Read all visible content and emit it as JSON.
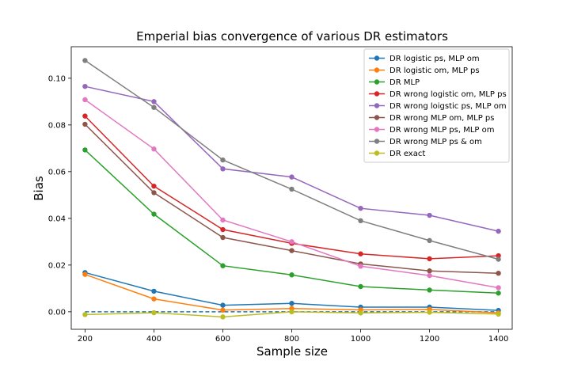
{
  "chart_data": {
    "type": "line",
    "title": "Emperial bias convergence of various DR estimators",
    "xlabel": "Sample size",
    "ylabel": "Bias",
    "x": [
      200,
      400,
      600,
      800,
      1000,
      1200,
      1400
    ],
    "xticks": [
      "200",
      "400",
      "600",
      "800",
      "1000",
      "1200",
      "1400"
    ],
    "yticks": [
      "0.00",
      "0.02",
      "0.04",
      "0.06",
      "0.08",
      "0.10"
    ],
    "xlim": [
      160,
      1440
    ],
    "ylim": [
      -0.0075,
      0.1135
    ],
    "legend_position": "top-right",
    "reference_line": {
      "y": 0,
      "style": "dashed",
      "color": "#1f77b4"
    },
    "series": [
      {
        "name": "DR logistic ps, MLP om",
        "color": "#1f77b4",
        "values": [
          0.0168,
          0.0088,
          0.0028,
          0.0036,
          0.002,
          0.002,
          0.0006
        ]
      },
      {
        "name": "DR logistic om, MLP ps",
        "color": "#ff7f0e",
        "values": [
          0.016,
          0.0055,
          0.0007,
          0.0014,
          0.0008,
          0.001,
          -0.0005
        ]
      },
      {
        "name": "DR MLP",
        "color": "#2ca02c",
        "values": [
          0.0693,
          0.0418,
          0.0197,
          0.0158,
          0.0108,
          0.0093,
          0.008
        ]
      },
      {
        "name": "DR wrong logistic om, MLP ps",
        "color": "#d62728",
        "values": [
          0.0838,
          0.0538,
          0.0352,
          0.0293,
          0.0248,
          0.0227,
          0.024
        ]
      },
      {
        "name": "DR wrong loigstic ps, MLP om",
        "color": "#9467bd",
        "values": [
          0.0965,
          0.09,
          0.0612,
          0.0577,
          0.0443,
          0.0413,
          0.0345
        ]
      },
      {
        "name": "DR wrong MLP om, MLP ps",
        "color": "#8c564b",
        "values": [
          0.0803,
          0.051,
          0.0318,
          0.0262,
          0.0205,
          0.0175,
          0.0165
        ]
      },
      {
        "name": "DR wrong MLP ps, MLP om",
        "color": "#e377c2",
        "values": [
          0.0908,
          0.0697,
          0.0393,
          0.03,
          0.0195,
          0.0155,
          0.0103
        ]
      },
      {
        "name": "DR wrong MLP ps & om",
        "color": "#7f7f7f",
        "values": [
          0.1076,
          0.0875,
          0.065,
          0.0525,
          0.039,
          0.0305,
          0.0225
        ]
      },
      {
        "name": "DR exact",
        "color": "#bcbd22",
        "values": [
          -0.0012,
          -0.0004,
          -0.0022,
          0.0,
          -0.0005,
          -0.0002,
          -0.001
        ]
      }
    ]
  }
}
